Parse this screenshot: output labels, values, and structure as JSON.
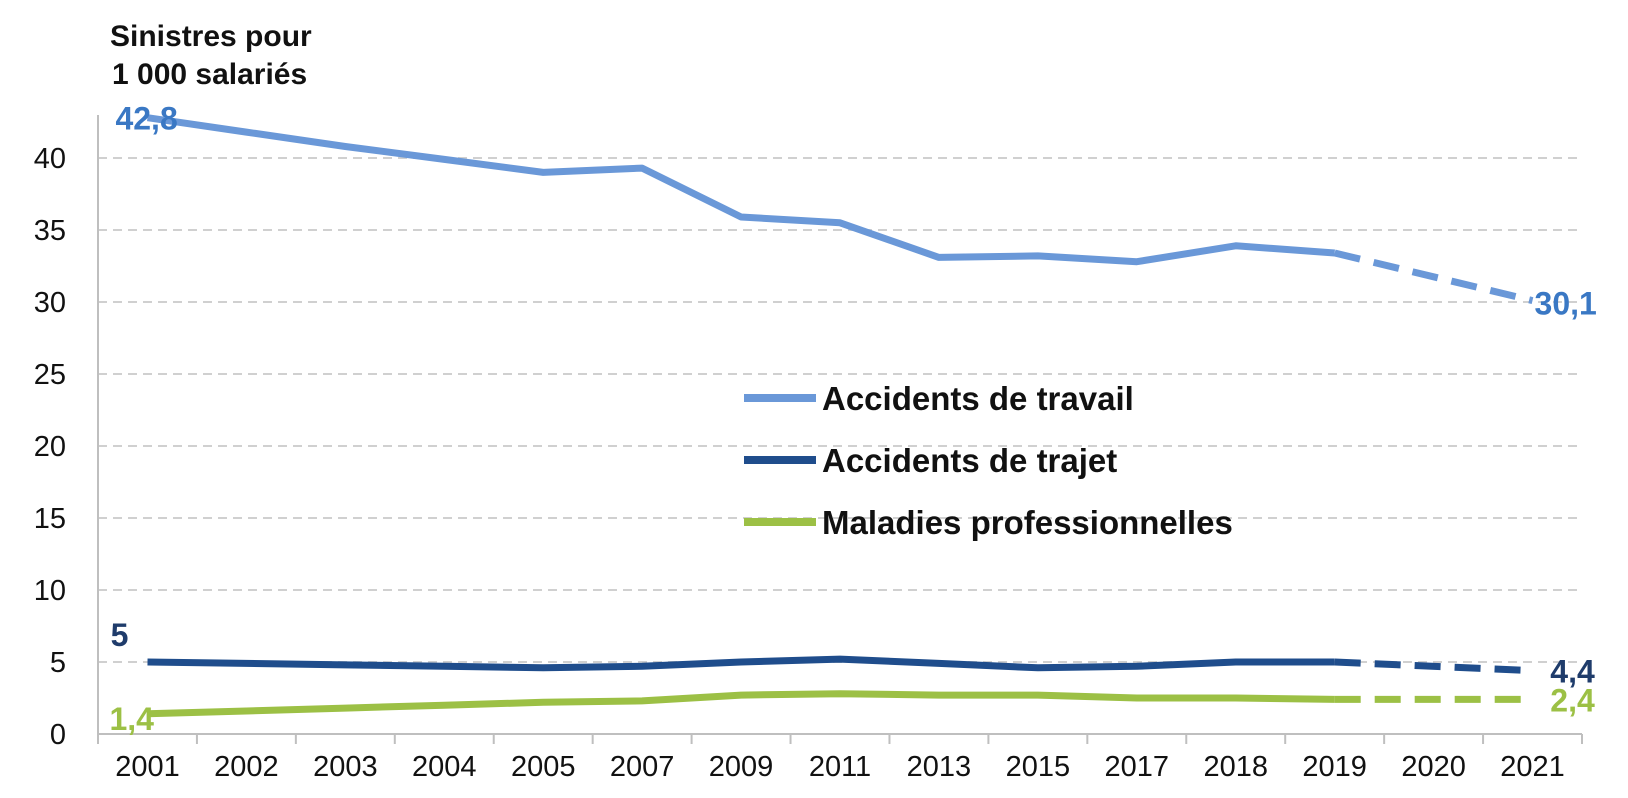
{
  "chart_data": {
    "type": "line",
    "ylabel_lines": [
      "Sinistres pour",
      "1 000 salariés"
    ],
    "categories": [
      "2001",
      "2002",
      "2003",
      "2004",
      "2005",
      "2007",
      "2009",
      "2011",
      "2013",
      "2015",
      "2017",
      "2018",
      "2019",
      "2020",
      "2021"
    ],
    "ylim": [
      0,
      43
    ],
    "yticks": [
      "0",
      "5",
      "10",
      "15",
      "20",
      "25",
      "30",
      "35",
      "40"
    ],
    "grid": true,
    "legend_position": "center",
    "series": [
      {
        "name": "Accidents de travail",
        "color": "#6a98d8",
        "values": [
          42.8,
          41.8,
          40.8,
          39.9,
          39.0,
          39.3,
          35.9,
          35.5,
          33.1,
          33.2,
          32.8,
          33.9,
          33.4,
          null,
          30.1
        ],
        "dashed_segment": "2019-2021"
      },
      {
        "name": "Accidents de trajet",
        "color": "#1f4d8c",
        "values": [
          5.0,
          4.9,
          4.8,
          4.7,
          4.6,
          4.7,
          5.0,
          5.2,
          4.9,
          4.6,
          4.7,
          5.0,
          5.0,
          null,
          4.4
        ],
        "dashed_segment": "2019-2021"
      },
      {
        "name": "Maladies professionnelles",
        "color": "#9cc045",
        "values": [
          1.4,
          1.6,
          1.8,
          2.0,
          2.2,
          2.3,
          2.7,
          2.8,
          2.7,
          2.7,
          2.5,
          2.5,
          2.4,
          null,
          2.4
        ],
        "dashed_segment": "2019-2021"
      }
    ],
    "annotations": [
      {
        "series": 0,
        "text": "42,8",
        "color": "#3a78c4"
      },
      {
        "series": 0,
        "text": "30,1",
        "color": "#3a78c4"
      },
      {
        "series": 1,
        "text": "5",
        "color": "#1f3c6b"
      },
      {
        "series": 1,
        "text": "4,4",
        "color": "#1f3c6b"
      },
      {
        "series": 2,
        "text": "1,4",
        "color": "#9cc045"
      },
      {
        "series": 2,
        "text": "2,4",
        "color": "#9cc045"
      }
    ]
  }
}
